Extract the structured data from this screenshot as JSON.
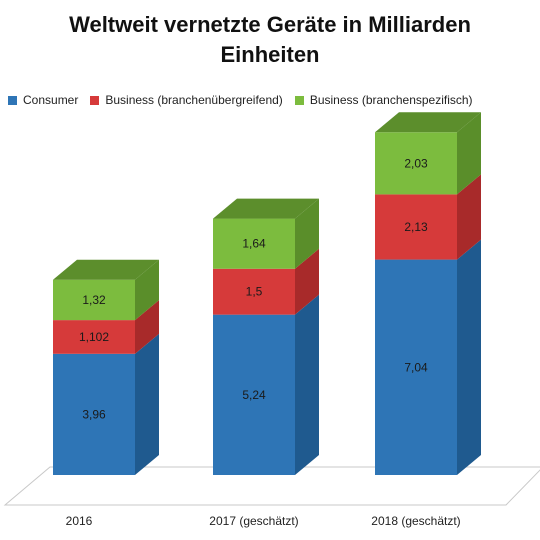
{
  "chart_data": {
    "type": "bar",
    "stacked": true,
    "style": "3d",
    "title": "Weltweit vernetzte Geräte in Milliarden Einheiten",
    "title_lines": [
      "Weltweit vernetzte Geräte in Milliarden",
      "Einheiten"
    ],
    "categories": [
      "2016",
      "2017 (geschätzt)",
      "2018 (geschätzt)"
    ],
    "series": [
      {
        "name": "Consumer",
        "values": [
          3.96,
          5.24,
          7.04
        ],
        "labels": [
          "3,96",
          "5,24",
          "7,04"
        ],
        "color": "#2e75b6",
        "side_color": "#1f5a8f",
        "top_color": "#3f86c6"
      },
      {
        "name": "Business (branchenübergreifend)",
        "values": [
          1.102,
          1.5,
          2.13
        ],
        "labels": [
          "1,102",
          "1,5",
          "2,13"
        ],
        "color": "#d63a3a",
        "side_color": "#a82a2a",
        "top_color": "#e04a4a"
      },
      {
        "name": "Business (branchenspezifisch)",
        "values": [
          1.32,
          1.64,
          2.03
        ],
        "labels": [
          "1,32",
          "1,64",
          "2,03"
        ],
        "color": "#7cbc3e",
        "side_color": "#5a8e2a",
        "top_color": "#5c8e2c"
      }
    ],
    "legend_position": "top",
    "grid": false,
    "ylim": [
      0,
      11.5
    ]
  }
}
